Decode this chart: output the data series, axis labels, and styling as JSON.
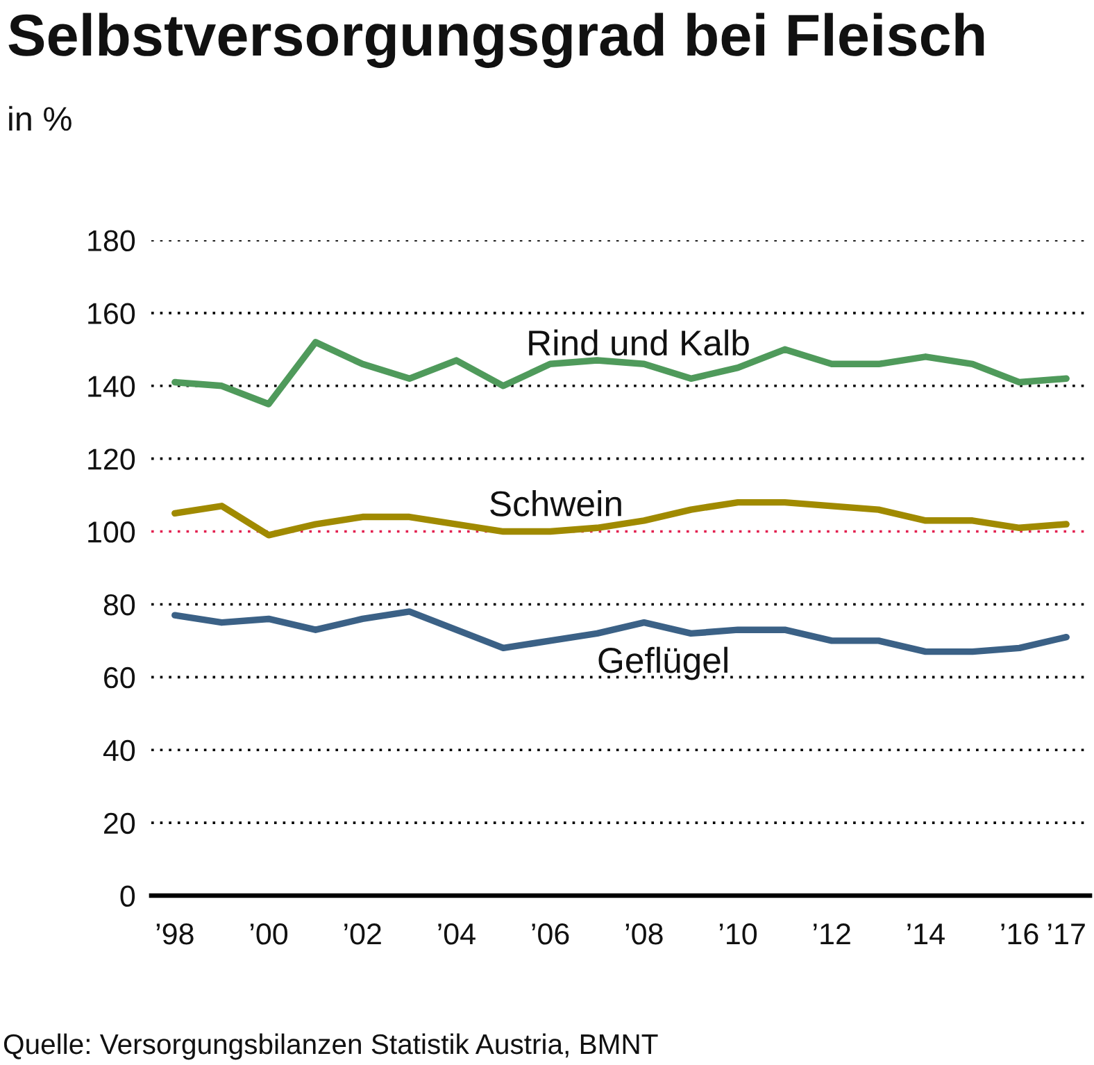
{
  "chart_data": {
    "type": "line",
    "title": "Selbstversorgungsgrad bei Fleisch",
    "subtitle": "in %",
    "x": [
      1998,
      1999,
      2000,
      2001,
      2002,
      2003,
      2004,
      2005,
      2006,
      2007,
      2008,
      2009,
      2010,
      2011,
      2012,
      2013,
      2014,
      2015,
      2016,
      2017
    ],
    "series": [
      {
        "name": "Rind und Kalb",
        "color": "#4f9a5b",
        "values": [
          141,
          140,
          135,
          152,
          146,
          142,
          147,
          140,
          146,
          147,
          146,
          142,
          145,
          150,
          146,
          146,
          148,
          146,
          141,
          142
        ]
      },
      {
        "name": "Schwein",
        "color": "#a08a00",
        "values": [
          105,
          107,
          99,
          102,
          104,
          104,
          102,
          100,
          100,
          101,
          103,
          106,
          108,
          108,
          107,
          106,
          103,
          103,
          101,
          102
        ]
      },
      {
        "name": "Geflügel",
        "color": "#3b6186",
        "values": [
          77,
          75,
          76,
          73,
          76,
          78,
          73,
          68,
          70,
          72,
          75,
          72,
          73,
          73,
          70,
          70,
          67,
          67,
          68,
          71
        ]
      }
    ],
    "xlim": [
      1997.5,
      2017.5
    ],
    "ylim": [
      0,
      180
    ],
    "xticks": [
      {
        "value": 1998,
        "label": "’98"
      },
      {
        "value": 2000,
        "label": "’00"
      },
      {
        "value": 2002,
        "label": "’02"
      },
      {
        "value": 2004,
        "label": "’04"
      },
      {
        "value": 2006,
        "label": "’06"
      },
      {
        "value": 2008,
        "label": "’08"
      },
      {
        "value": 2010,
        "label": "’10"
      },
      {
        "value": 2012,
        "label": "’12"
      },
      {
        "value": 2014,
        "label": "’14"
      },
      {
        "value": 2016,
        "label": "’16"
      },
      {
        "value": 2017,
        "label": "’17"
      }
    ],
    "yticks": [
      0,
      20,
      40,
      60,
      80,
      100,
      120,
      140,
      160,
      180
    ],
    "grid": "y",
    "line_style": "solid",
    "ref_lines": [
      {
        "axis": "y",
        "value": 100,
        "color": "#e2204f",
        "line_style": "dotted"
      }
    ],
    "annotations": [
      "Quelle: Versorgungsbilanzen Statistik Austria, BMNT"
    ]
  }
}
